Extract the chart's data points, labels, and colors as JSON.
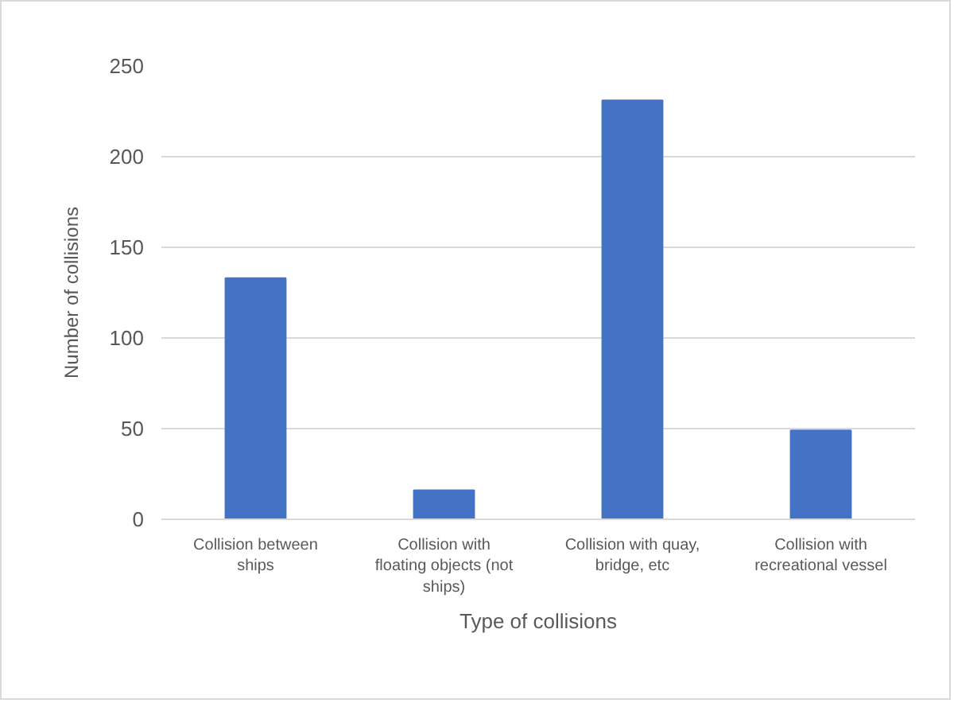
{
  "chart_data": {
    "type": "bar",
    "xlabel": "Type of collisions",
    "ylabel": "Number of collisions",
    "categories": [
      "Collision between ships",
      "Collision with floating objects (not ships)",
      "Collision with quay, bridge, etc",
      "Collision with recreational vessel"
    ],
    "values": [
      133,
      16,
      231,
      49
    ],
    "color": "#4472c4",
    "ylim": [
      0,
      250
    ],
    "yticks": [
      0,
      50,
      100,
      150,
      200,
      250
    ],
    "grid": "y"
  }
}
